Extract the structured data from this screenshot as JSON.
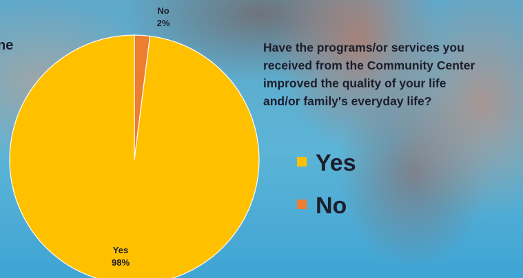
{
  "chart_data": {
    "type": "pie",
    "title": [
      "Have the programs/or services you",
      "received from the Community Center",
      "improved the quality of your life",
      "and/or family's everyday life?"
    ],
    "annotation": "ne",
    "categories": [
      "No",
      "Yes"
    ],
    "values": [
      2,
      98
    ],
    "value_labels": [
      "2%",
      "98%"
    ],
    "colors": [
      "#ED7D31",
      "#FFC000"
    ],
    "legend_order": [
      "Yes",
      "No"
    ]
  }
}
